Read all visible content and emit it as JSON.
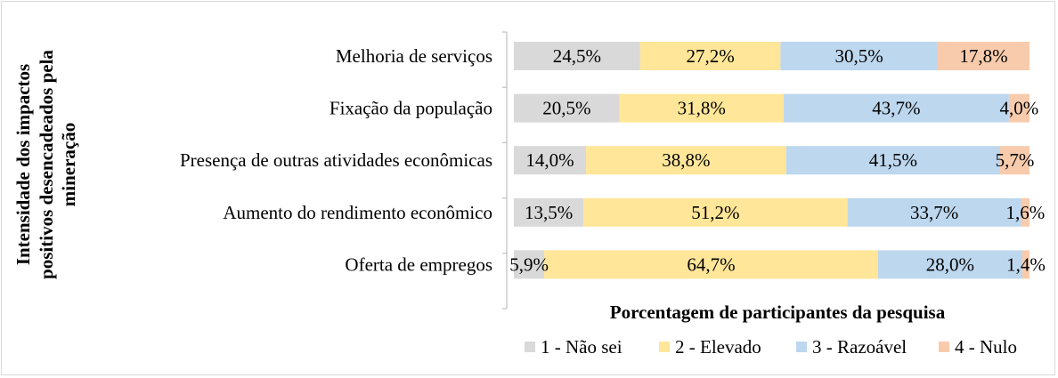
{
  "chart_data": {
    "type": "bar",
    "orientation": "horizontal",
    "stacked": "percent",
    "categories": [
      "Melhoria de serviços",
      "Fixação da população",
      "Presença de outras atividades econômicas",
      "Aumento do rendimento econômico",
      "Oferta de empregos"
    ],
    "series": [
      {
        "name": "1 - Não sei",
        "color": "#d9d9d9",
        "values": [
          24.5,
          20.5,
          14.0,
          13.5,
          5.9
        ]
      },
      {
        "name": "2 - Elevado",
        "color": "#ffe699",
        "values": [
          27.2,
          31.8,
          38.8,
          51.2,
          64.7
        ]
      },
      {
        "name": "3 - Razoável",
        "color": "#bdd7ee",
        "values": [
          30.5,
          43.7,
          41.5,
          33.7,
          28.0
        ]
      },
      {
        "name": "4 - Nulo",
        "color": "#f8cbad",
        "values": [
          17.8,
          4.0,
          5.7,
          1.6,
          1.4
        ]
      }
    ],
    "data_labels": [
      [
        "24,5%",
        "20,5%",
        "14,0%",
        "13,5%",
        "5,9%"
      ],
      [
        "27,2%",
        "31,8%",
        "38,8%",
        "51,2%",
        "64,7%"
      ],
      [
        "30,5%",
        "43,7%",
        "41,5%",
        "33,7%",
        "28,0%"
      ],
      [
        "17,8%",
        "4,0%",
        "5,7%",
        "1,6%",
        "1,4%"
      ]
    ],
    "xlabel": "Porcentagem de participantes da pesquisa",
    "ylabel": "Intensidade dos impactos positivos desencadeados pela mineração",
    "ylabel_lines": [
      "Intensidade dos impactos",
      "positivos desencadeados pela",
      "mineração"
    ],
    "xlim": [
      0,
      100
    ],
    "grid": false,
    "legend_position": "bottom"
  }
}
